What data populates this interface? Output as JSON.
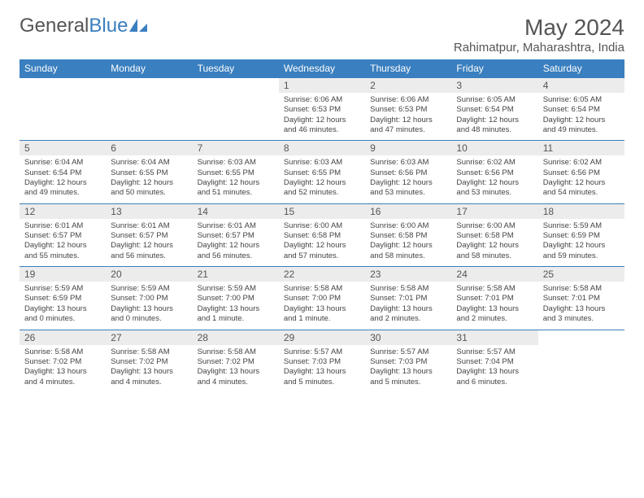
{
  "brand": {
    "part1": "General",
    "part2": "Blue"
  },
  "title": "May 2024",
  "location": "Rahimatpur, Maharashtra, India",
  "colors": {
    "header_bg": "#3a7fbf",
    "header_text": "#ffffff",
    "daynum_bg": "#ececec",
    "border": "#3a7fbf",
    "text": "#444444",
    "title_text": "#555555"
  },
  "typography": {
    "title_fontsize": 28,
    "location_fontsize": 15,
    "header_fontsize": 12,
    "daynum_fontsize": 12,
    "body_fontsize": 9.5
  },
  "columns": [
    "Sunday",
    "Monday",
    "Tuesday",
    "Wednesday",
    "Thursday",
    "Friday",
    "Saturday"
  ],
  "weeks": [
    [
      null,
      null,
      null,
      {
        "n": "1",
        "sr": "Sunrise: 6:06 AM",
        "ss": "Sunset: 6:53 PM",
        "dl": "Daylight: 12 hours and 46 minutes."
      },
      {
        "n": "2",
        "sr": "Sunrise: 6:06 AM",
        "ss": "Sunset: 6:53 PM",
        "dl": "Daylight: 12 hours and 47 minutes."
      },
      {
        "n": "3",
        "sr": "Sunrise: 6:05 AM",
        "ss": "Sunset: 6:54 PM",
        "dl": "Daylight: 12 hours and 48 minutes."
      },
      {
        "n": "4",
        "sr": "Sunrise: 6:05 AM",
        "ss": "Sunset: 6:54 PM",
        "dl": "Daylight: 12 hours and 49 minutes."
      }
    ],
    [
      {
        "n": "5",
        "sr": "Sunrise: 6:04 AM",
        "ss": "Sunset: 6:54 PM",
        "dl": "Daylight: 12 hours and 49 minutes."
      },
      {
        "n": "6",
        "sr": "Sunrise: 6:04 AM",
        "ss": "Sunset: 6:55 PM",
        "dl": "Daylight: 12 hours and 50 minutes."
      },
      {
        "n": "7",
        "sr": "Sunrise: 6:03 AM",
        "ss": "Sunset: 6:55 PM",
        "dl": "Daylight: 12 hours and 51 minutes."
      },
      {
        "n": "8",
        "sr": "Sunrise: 6:03 AM",
        "ss": "Sunset: 6:55 PM",
        "dl": "Daylight: 12 hours and 52 minutes."
      },
      {
        "n": "9",
        "sr": "Sunrise: 6:03 AM",
        "ss": "Sunset: 6:56 PM",
        "dl": "Daylight: 12 hours and 53 minutes."
      },
      {
        "n": "10",
        "sr": "Sunrise: 6:02 AM",
        "ss": "Sunset: 6:56 PM",
        "dl": "Daylight: 12 hours and 53 minutes."
      },
      {
        "n": "11",
        "sr": "Sunrise: 6:02 AM",
        "ss": "Sunset: 6:56 PM",
        "dl": "Daylight: 12 hours and 54 minutes."
      }
    ],
    [
      {
        "n": "12",
        "sr": "Sunrise: 6:01 AM",
        "ss": "Sunset: 6:57 PM",
        "dl": "Daylight: 12 hours and 55 minutes."
      },
      {
        "n": "13",
        "sr": "Sunrise: 6:01 AM",
        "ss": "Sunset: 6:57 PM",
        "dl": "Daylight: 12 hours and 56 minutes."
      },
      {
        "n": "14",
        "sr": "Sunrise: 6:01 AM",
        "ss": "Sunset: 6:57 PM",
        "dl": "Daylight: 12 hours and 56 minutes."
      },
      {
        "n": "15",
        "sr": "Sunrise: 6:00 AM",
        "ss": "Sunset: 6:58 PM",
        "dl": "Daylight: 12 hours and 57 minutes."
      },
      {
        "n": "16",
        "sr": "Sunrise: 6:00 AM",
        "ss": "Sunset: 6:58 PM",
        "dl": "Daylight: 12 hours and 58 minutes."
      },
      {
        "n": "17",
        "sr": "Sunrise: 6:00 AM",
        "ss": "Sunset: 6:58 PM",
        "dl": "Daylight: 12 hours and 58 minutes."
      },
      {
        "n": "18",
        "sr": "Sunrise: 5:59 AM",
        "ss": "Sunset: 6:59 PM",
        "dl": "Daylight: 12 hours and 59 minutes."
      }
    ],
    [
      {
        "n": "19",
        "sr": "Sunrise: 5:59 AM",
        "ss": "Sunset: 6:59 PM",
        "dl": "Daylight: 13 hours and 0 minutes."
      },
      {
        "n": "20",
        "sr": "Sunrise: 5:59 AM",
        "ss": "Sunset: 7:00 PM",
        "dl": "Daylight: 13 hours and 0 minutes."
      },
      {
        "n": "21",
        "sr": "Sunrise: 5:59 AM",
        "ss": "Sunset: 7:00 PM",
        "dl": "Daylight: 13 hours and 1 minute."
      },
      {
        "n": "22",
        "sr": "Sunrise: 5:58 AM",
        "ss": "Sunset: 7:00 PM",
        "dl": "Daylight: 13 hours and 1 minute."
      },
      {
        "n": "23",
        "sr": "Sunrise: 5:58 AM",
        "ss": "Sunset: 7:01 PM",
        "dl": "Daylight: 13 hours and 2 minutes."
      },
      {
        "n": "24",
        "sr": "Sunrise: 5:58 AM",
        "ss": "Sunset: 7:01 PM",
        "dl": "Daylight: 13 hours and 2 minutes."
      },
      {
        "n": "25",
        "sr": "Sunrise: 5:58 AM",
        "ss": "Sunset: 7:01 PM",
        "dl": "Daylight: 13 hours and 3 minutes."
      }
    ],
    [
      {
        "n": "26",
        "sr": "Sunrise: 5:58 AM",
        "ss": "Sunset: 7:02 PM",
        "dl": "Daylight: 13 hours and 4 minutes."
      },
      {
        "n": "27",
        "sr": "Sunrise: 5:58 AM",
        "ss": "Sunset: 7:02 PM",
        "dl": "Daylight: 13 hours and 4 minutes."
      },
      {
        "n": "28",
        "sr": "Sunrise: 5:58 AM",
        "ss": "Sunset: 7:02 PM",
        "dl": "Daylight: 13 hours and 4 minutes."
      },
      {
        "n": "29",
        "sr": "Sunrise: 5:57 AM",
        "ss": "Sunset: 7:03 PM",
        "dl": "Daylight: 13 hours and 5 minutes."
      },
      {
        "n": "30",
        "sr": "Sunrise: 5:57 AM",
        "ss": "Sunset: 7:03 PM",
        "dl": "Daylight: 13 hours and 5 minutes."
      },
      {
        "n": "31",
        "sr": "Sunrise: 5:57 AM",
        "ss": "Sunset: 7:04 PM",
        "dl": "Daylight: 13 hours and 6 minutes."
      },
      null
    ]
  ]
}
